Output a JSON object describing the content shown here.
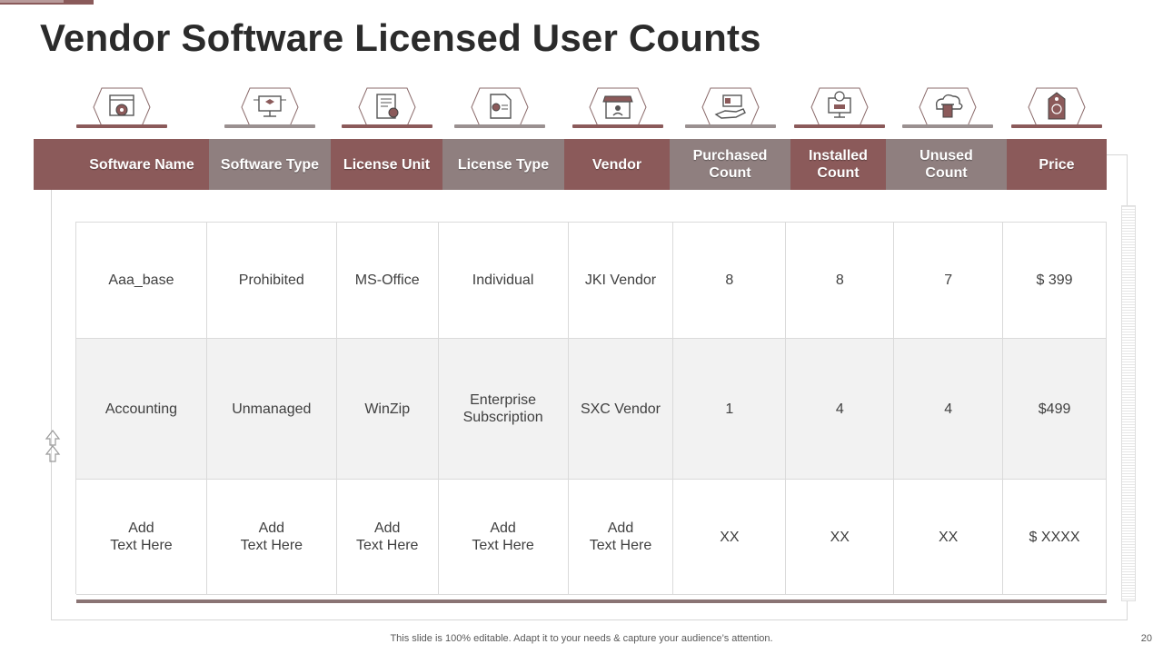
{
  "title": "Vendor Software Licensed User Counts",
  "colors": {
    "header_dark": "#8b5a5a",
    "header_light": "#8f7f7f",
    "accent": "#8a5a5a"
  },
  "icons": [
    {
      "name": "settings-window-icon"
    },
    {
      "name": "monitor-network-icon"
    },
    {
      "name": "license-certificate-icon"
    },
    {
      "name": "license-document-icon"
    },
    {
      "name": "vendor-store-icon"
    },
    {
      "name": "hand-payment-icon"
    },
    {
      "name": "installed-monitor-icon"
    },
    {
      "name": "cloud-trash-icon"
    },
    {
      "name": "price-tag-icon"
    }
  ],
  "table": {
    "headers": [
      "Software Name",
      "Software Type",
      "License Unit",
      "License Type",
      "Vendor",
      "Purchased\nCount",
      "Installed\nCount",
      "Unused\nCount",
      "Price"
    ],
    "rows": [
      [
        "Aaa_base",
        "Prohibited",
        "MS-Office",
        "Individual",
        "JKI Vendor",
        "8",
        "8",
        "7",
        "$ 399"
      ],
      [
        "Accounting",
        "Unmanaged",
        "WinZip",
        "Enterprise\nSubscription",
        "SXC Vendor",
        "1",
        "4",
        "4",
        "$499"
      ],
      [
        "Add\nText Here",
        "Add\nText Here",
        "Add\nText Here",
        "Add\nText Here",
        "Add\nText Here",
        "XX",
        "XX",
        "XX",
        "$ XXXX"
      ]
    ]
  },
  "footer": "This slide is 100% editable. Adapt it to your needs & capture your audience’s attention.",
  "page_number": "20"
}
